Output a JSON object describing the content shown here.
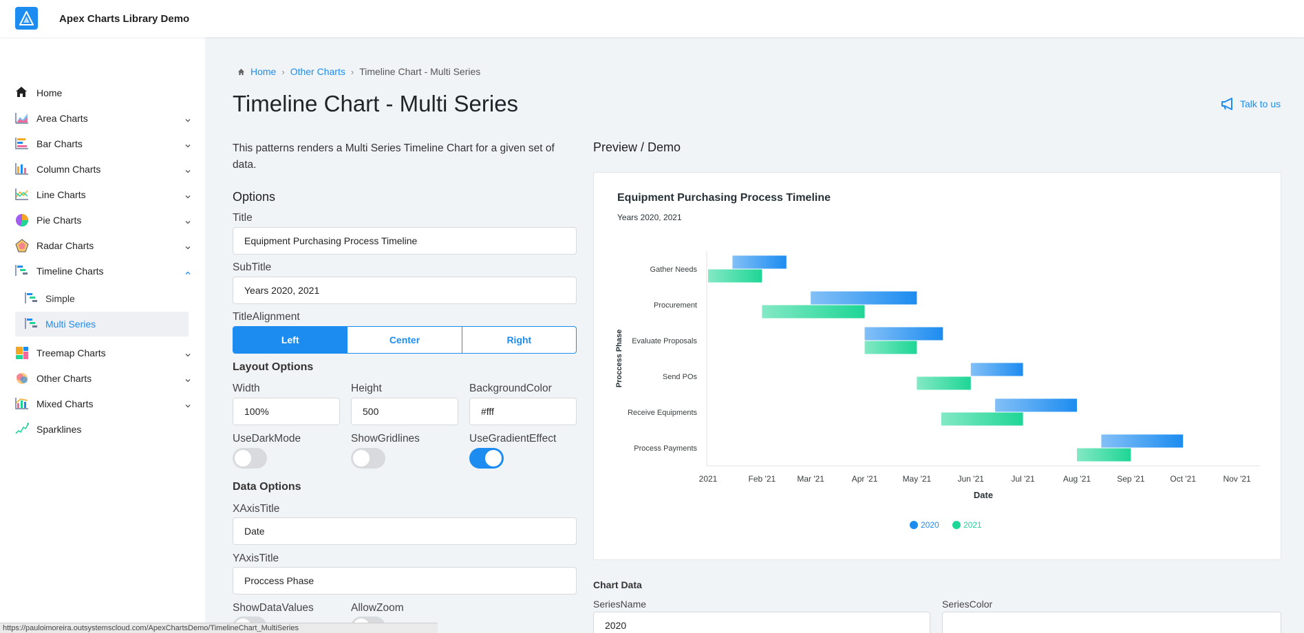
{
  "app": {
    "title": "Apex Charts Library Demo"
  },
  "sidebar": {
    "items": [
      {
        "label": "Home",
        "icon": "home-icon",
        "chevron": ""
      },
      {
        "label": "Area Charts",
        "icon": "area-chart-icon",
        "chevron": "down"
      },
      {
        "label": "Bar Charts",
        "icon": "bar-chart-icon",
        "chevron": "down"
      },
      {
        "label": "Column Charts",
        "icon": "column-chart-icon",
        "chevron": "down"
      },
      {
        "label": "Line Charts",
        "icon": "line-chart-icon",
        "chevron": "down"
      },
      {
        "label": "Pie Charts",
        "icon": "pie-chart-icon",
        "chevron": "down"
      },
      {
        "label": "Radar Charts",
        "icon": "radar-chart-icon",
        "chevron": "down"
      },
      {
        "label": "Timeline Charts",
        "icon": "timeline-chart-icon",
        "chevron": "up"
      },
      {
        "label": "Treemap Charts",
        "icon": "treemap-chart-icon",
        "chevron": "down"
      },
      {
        "label": "Other Charts",
        "icon": "other-chart-icon",
        "chevron": "down"
      },
      {
        "label": "Mixed Charts",
        "icon": "mixed-chart-icon",
        "chevron": "down"
      },
      {
        "label": "Sparklines",
        "icon": "sparkline-icon",
        "chevron": ""
      }
    ],
    "sub_items": [
      {
        "label": "Simple",
        "active": false
      },
      {
        "label": "Multi Series",
        "active": true
      }
    ]
  },
  "breadcrumb": {
    "home": "Home",
    "parent": "Other Charts",
    "current": "Timeline Chart - Multi Series"
  },
  "page": {
    "title": "Timeline Chart - Multi Series",
    "talk_label": "Talk to us",
    "description": "This patterns renders a Multi Series Timeline Chart for a given set of data."
  },
  "options": {
    "heading": "Options",
    "title_label": "Title",
    "title_value": "Equipment Purchasing Process Timeline",
    "subtitle_label": "SubTitle",
    "subtitle_value": "Years 2020, 2021",
    "alignment_label": "TitleAlignment",
    "alignment_options": [
      "Left",
      "Center",
      "Right"
    ],
    "alignment_selected": "Left",
    "layout_heading": "Layout Options",
    "width_label": "Width",
    "width_value": "100%",
    "height_label": "Height",
    "height_value": "500",
    "bg_label": "BackgroundColor",
    "bg_value": "#fff",
    "dark_label": "UseDarkMode",
    "dark_on": false,
    "grid_label": "ShowGridlines",
    "grid_on": false,
    "gradient_label": "UseGradientEffect",
    "gradient_on": true,
    "data_heading": "Data Options",
    "xaxis_label": "XAxisTitle",
    "xaxis_value": "Date",
    "yaxis_label": "YAxisTitle",
    "yaxis_value": "Proccess Phase",
    "show_values_label": "ShowDataValues",
    "zoom_label": "AllowZoom"
  },
  "preview": {
    "heading": "Preview / Demo"
  },
  "chart_data": {
    "type": "timeline",
    "title": "Equipment Purchasing Process Timeline",
    "subtitle": "Years 2020, 2021",
    "xlabel": "Date",
    "ylabel": "Proccess Phase",
    "x_ticks": [
      "2021",
      "Feb '21",
      "Mar '21",
      "Apr '21",
      "May '21",
      "Jun '21",
      "Jul '21",
      "Aug '21",
      "Sep '21",
      "Oct '21",
      "Nov '21"
    ],
    "xlim": [
      "2021-01-01",
      "2021-11-15"
    ],
    "categories": [
      "Gather Needs",
      "Procurement",
      "Evaluate Proposals",
      "Send POs",
      "Receive Equipments",
      "Process Payments"
    ],
    "legend_position": "bottom",
    "series": [
      {
        "name": "2020",
        "color": "#1d8cf0",
        "data": [
          {
            "x": "Gather Needs",
            "start": "2021-01-15",
            "end": "2021-02-15"
          },
          {
            "x": "Procurement",
            "start": "2021-03-01",
            "end": "2021-05-01"
          },
          {
            "x": "Evaluate Proposals",
            "start": "2021-04-01",
            "end": "2021-05-16"
          },
          {
            "x": "Send POs",
            "start": "2021-06-01",
            "end": "2021-07-01"
          },
          {
            "x": "Receive Equipments",
            "start": "2021-06-15",
            "end": "2021-08-01"
          },
          {
            "x": "Process Payments",
            "start": "2021-08-15",
            "end": "2021-10-01"
          }
        ]
      },
      {
        "name": "2021",
        "color": "#1ed696",
        "data": [
          {
            "x": "Gather Needs",
            "start": "2021-01-01",
            "end": "2021-02-01"
          },
          {
            "x": "Procurement",
            "start": "2021-02-01",
            "end": "2021-04-01"
          },
          {
            "x": "Evaluate Proposals",
            "start": "2021-04-01",
            "end": "2021-05-01"
          },
          {
            "x": "Send POs",
            "start": "2021-05-01",
            "end": "2021-06-01"
          },
          {
            "x": "Receive Equipments",
            "start": "2021-05-15",
            "end": "2021-07-01"
          },
          {
            "x": "Process Payments",
            "start": "2021-08-01",
            "end": "2021-09-01"
          }
        ]
      }
    ]
  },
  "chart_table": {
    "heading": "Chart Data",
    "series_name_label": "SeriesName",
    "series_name_value": "2020",
    "series_color_label": "SeriesColor",
    "series_color_value": ""
  },
  "statusbar": {
    "url": "https://pauloimoreira.outsystemscloud.com/ApexChartsDemo/TimelineChart_MultiSeries"
  }
}
